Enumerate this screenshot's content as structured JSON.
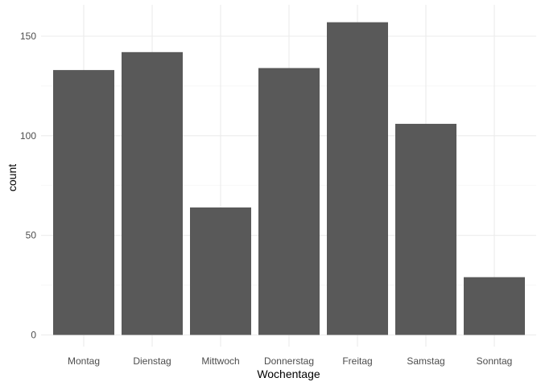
{
  "chart_data": {
    "type": "bar",
    "title": "",
    "xlabel": "Wochentage",
    "ylabel": "count",
    "categories": [
      "Montag",
      "Dienstag",
      "Mittwoch",
      "Donnerstag",
      "Freitag",
      "Samstag",
      "Sonntag"
    ],
    "values": [
      133,
      142,
      64,
      134,
      157,
      106,
      29
    ],
    "ylim": [
      0,
      165
    ],
    "yticks": [
      0,
      50,
      100,
      150
    ],
    "ytick_labels": [
      "0",
      "50",
      "100",
      "150"
    ],
    "grid": true,
    "legend": "none",
    "colors": {
      "bar": "#595959",
      "grid_major": "#ebebeb",
      "grid_minor": "#f3f3f3",
      "background": "#ffffff"
    }
  }
}
